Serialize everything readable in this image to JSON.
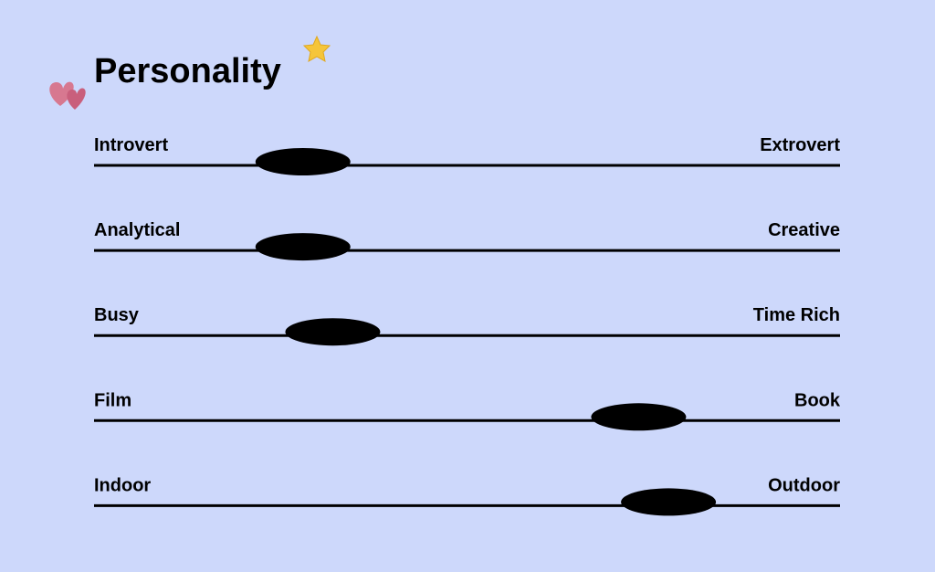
{
  "header": {
    "title": "Personality"
  },
  "xlim": [
    0,
    100
  ],
  "sliders": [
    {
      "left": "Introvert",
      "right": "Extrovert",
      "value": 28
    },
    {
      "left": "Analytical",
      "right": "Creative",
      "value": 28
    },
    {
      "left": "Busy",
      "right": "Time Rich",
      "value": 32
    },
    {
      "left": "Film",
      "right": "Book",
      "value": 73
    },
    {
      "left": "Indoor",
      "right": "Outdoor",
      "value": 77
    }
  ]
}
